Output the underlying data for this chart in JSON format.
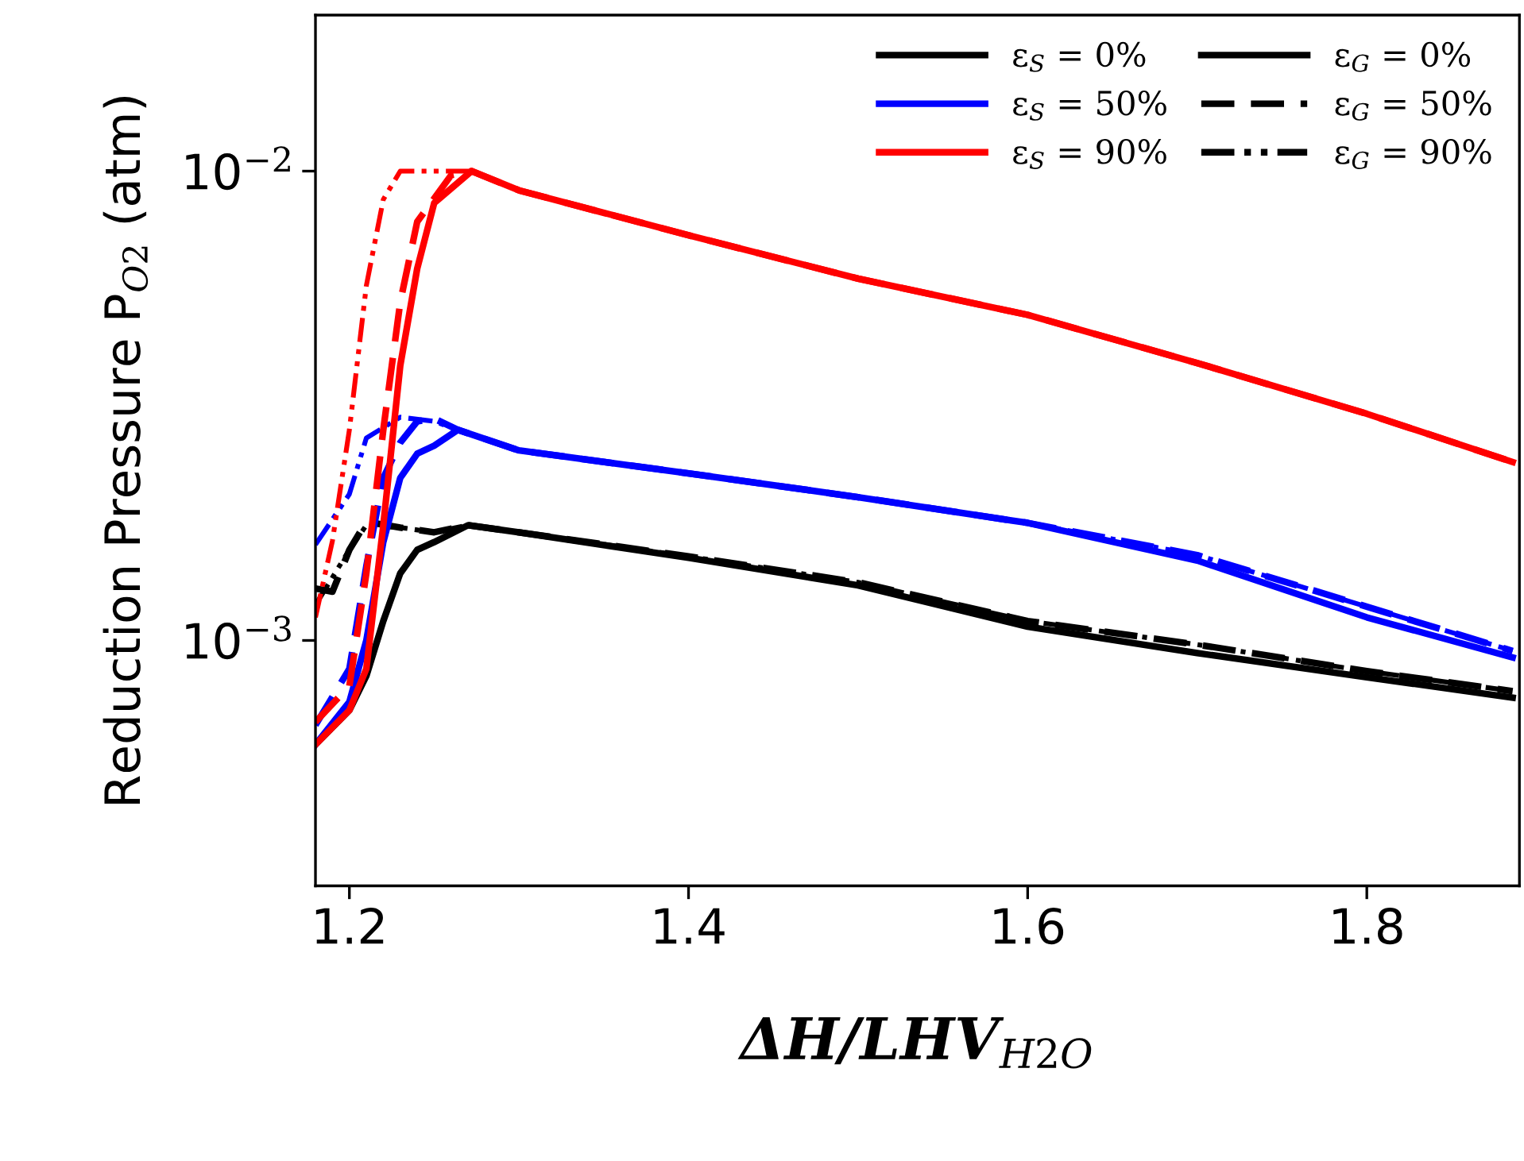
{
  "chart_data": {
    "type": "line",
    "xlabel": "ΔH/LHV$_{H2O}$",
    "ylabel": "Reduction Pressure P$_{O2}$ (atm)",
    "xlim": [
      1.18,
      1.89
    ],
    "xticks": [
      1.2,
      1.4,
      1.6,
      1.8
    ],
    "ylim": [
      0.0003,
      0.0215
    ],
    "log": true,
    "yticks": [
      {
        "value": 0.001,
        "label": "10$^{−3}$"
      },
      {
        "value": 0.01,
        "label": "10$^{−2}$"
      }
    ],
    "grid": false,
    "annotations": [
      "ε$_{S}$ = 0%",
      "ε$_{S}$ = 50%",
      "ε$_{S}$ = 90%",
      "ε$_{G}$ = 0%",
      "ε$_{G}$ = 50%",
      "ε$_{G}$ = 90%"
    ],
    "series": [
      {
        "color": "#000000",
        "line_style": "solid",
        "x": [
          1.18,
          1.2,
          1.21,
          1.22,
          1.23,
          1.24,
          1.25,
          1.27,
          1.3,
          1.4,
          1.5,
          1.6,
          1.7,
          1.8,
          1.886
        ],
        "values": [
          0.0006,
          0.00071,
          0.00084,
          0.0011,
          0.00139,
          0.00156,
          0.00162,
          0.00176,
          0.0017,
          0.0015,
          0.00131,
          0.00107,
          0.00094,
          0.000835,
          0.000755
        ]
      },
      {
        "color": "#000000",
        "line_style": "dashed",
        "x": [
          1.18,
          1.19,
          1.2,
          1.21,
          1.23,
          1.25,
          1.27,
          1.3,
          1.4,
          1.5,
          1.6,
          1.7,
          1.8,
          1.886
        ],
        "values": [
          0.00129,
          0.00127,
          0.00156,
          0.00179,
          0.00174,
          0.0017,
          0.00176,
          0.0017,
          0.00151,
          0.00133,
          0.0011,
          0.00098,
          0.00086,
          0.00078
        ]
      },
      {
        "color": "#000000",
        "line_style": "dotted",
        "x": [
          1.18,
          1.2,
          1.21,
          1.23,
          1.25,
          1.27,
          1.3,
          1.4,
          1.5,
          1.6,
          1.7,
          1.8,
          1.886
        ],
        "values": [
          0.00119,
          0.00156,
          0.00176,
          0.00174,
          0.0017,
          0.00176,
          0.0017,
          0.00151,
          0.00133,
          0.0011,
          0.00098,
          0.00086,
          0.00078
        ]
      },
      {
        "color": "#0000ff",
        "line_style": "solid",
        "x": [
          1.18,
          1.2,
          1.21,
          1.22,
          1.23,
          1.24,
          1.25,
          1.264,
          1.3,
          1.4,
          1.5,
          1.6,
          1.7,
          1.8,
          1.886
        ],
        "values": [
          0.0006,
          0.00074,
          0.001,
          0.00162,
          0.00222,
          0.0025,
          0.0026,
          0.00281,
          0.00254,
          0.00227,
          0.00202,
          0.00178,
          0.00148,
          0.00112,
          0.00092
        ]
      },
      {
        "color": "#0000ff",
        "line_style": "dashed",
        "x": [
          1.18,
          1.2,
          1.21,
          1.22,
          1.23,
          1.24,
          1.25,
          1.264,
          1.3,
          1.4,
          1.5,
          1.6,
          1.7,
          1.8,
          1.886
        ],
        "values": [
          0.00066,
          0.00087,
          0.00144,
          0.00222,
          0.00264,
          0.00293,
          0.00297,
          0.00281,
          0.00254,
          0.00227,
          0.00202,
          0.00178,
          0.00152,
          0.00118,
          0.00095
        ]
      },
      {
        "color": "#0000ff",
        "line_style": "dotted",
        "x": [
          1.18,
          1.2,
          1.21,
          1.23,
          1.25,
          1.264,
          1.3,
          1.4,
          1.5,
          1.6,
          1.7,
          1.8,
          1.886
        ],
        "values": [
          0.0016,
          0.00205,
          0.0027,
          0.00299,
          0.00293,
          0.00281,
          0.00254,
          0.00227,
          0.00202,
          0.00178,
          0.00152,
          0.00118,
          0.00095
        ]
      },
      {
        "color": "#ff0000",
        "line_style": "solid",
        "x": [
          1.18,
          1.2,
          1.21,
          1.22,
          1.23,
          1.24,
          1.25,
          1.272,
          1.3,
          1.4,
          1.5,
          1.6,
          1.7,
          1.8,
          1.886
        ],
        "values": [
          0.0006,
          0.00071,
          0.00087,
          0.00176,
          0.00385,
          0.0062,
          0.00855,
          0.01,
          0.0091,
          0.0073,
          0.0059,
          0.00494,
          0.0039,
          0.00304,
          0.0024
        ]
      },
      {
        "color": "#ff0000",
        "line_style": "dashed",
        "x": [
          1.18,
          1.2,
          1.21,
          1.22,
          1.23,
          1.24,
          1.26,
          1.272,
          1.3,
          1.4,
          1.5,
          1.6,
          1.7,
          1.8,
          1.886
        ],
        "values": [
          0.00067,
          0.0008,
          0.00139,
          0.00281,
          0.00526,
          0.0078,
          0.0098,
          0.01,
          0.0091,
          0.0073,
          0.0059,
          0.00494,
          0.0039,
          0.00304,
          0.0024
        ]
      },
      {
        "color": "#ff0000",
        "line_style": "dotted",
        "x": [
          1.18,
          1.19,
          1.2,
          1.21,
          1.22,
          1.23,
          1.25,
          1.272,
          1.3,
          1.4,
          1.5,
          1.6,
          1.7,
          1.8,
          1.886
        ],
        "values": [
          0.00112,
          0.00163,
          0.00281,
          0.0057,
          0.0087,
          0.01,
          0.01,
          0.01,
          0.0091,
          0.0073,
          0.0059,
          0.00494,
          0.0039,
          0.00304,
          0.0024
        ]
      }
    ]
  }
}
